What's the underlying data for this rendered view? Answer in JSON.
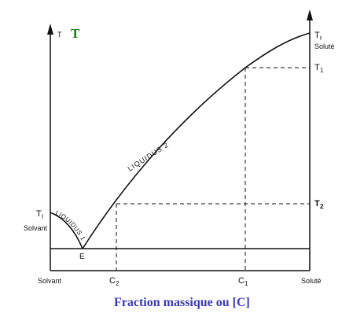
{
  "diagram": {
    "title_axis_t_small": "T",
    "title_axis_t_big": "T",
    "label_tf_left": "T",
    "label_tf_left_sub": "f",
    "label_solvant_left": "Solvant",
    "label_tf_right": "T",
    "label_tf_right_sub": "f",
    "label_solute_right": "Soluté",
    "label_t1": "T",
    "label_t1_sub": "1",
    "label_t2": "T",
    "label_t2_sub": "2",
    "label_e": "E",
    "curve_liquidus1": "LIQUIDUS 1",
    "curve_liquidus2": "LIQUIDUS 2",
    "xaxis_solvant": "Solvant",
    "xaxis_c2": "C",
    "xaxis_c2_sub": "2",
    "xaxis_c1": "C",
    "xaxis_c1_sub": "1",
    "xaxis_solute": "Soluté",
    "xaxis_caption": "Fraction massique ou [C]",
    "colors": {
      "ink": "#111111",
      "t_green": "#1a7a1a",
      "caption_blue": "#3a3ab0"
    }
  }
}
